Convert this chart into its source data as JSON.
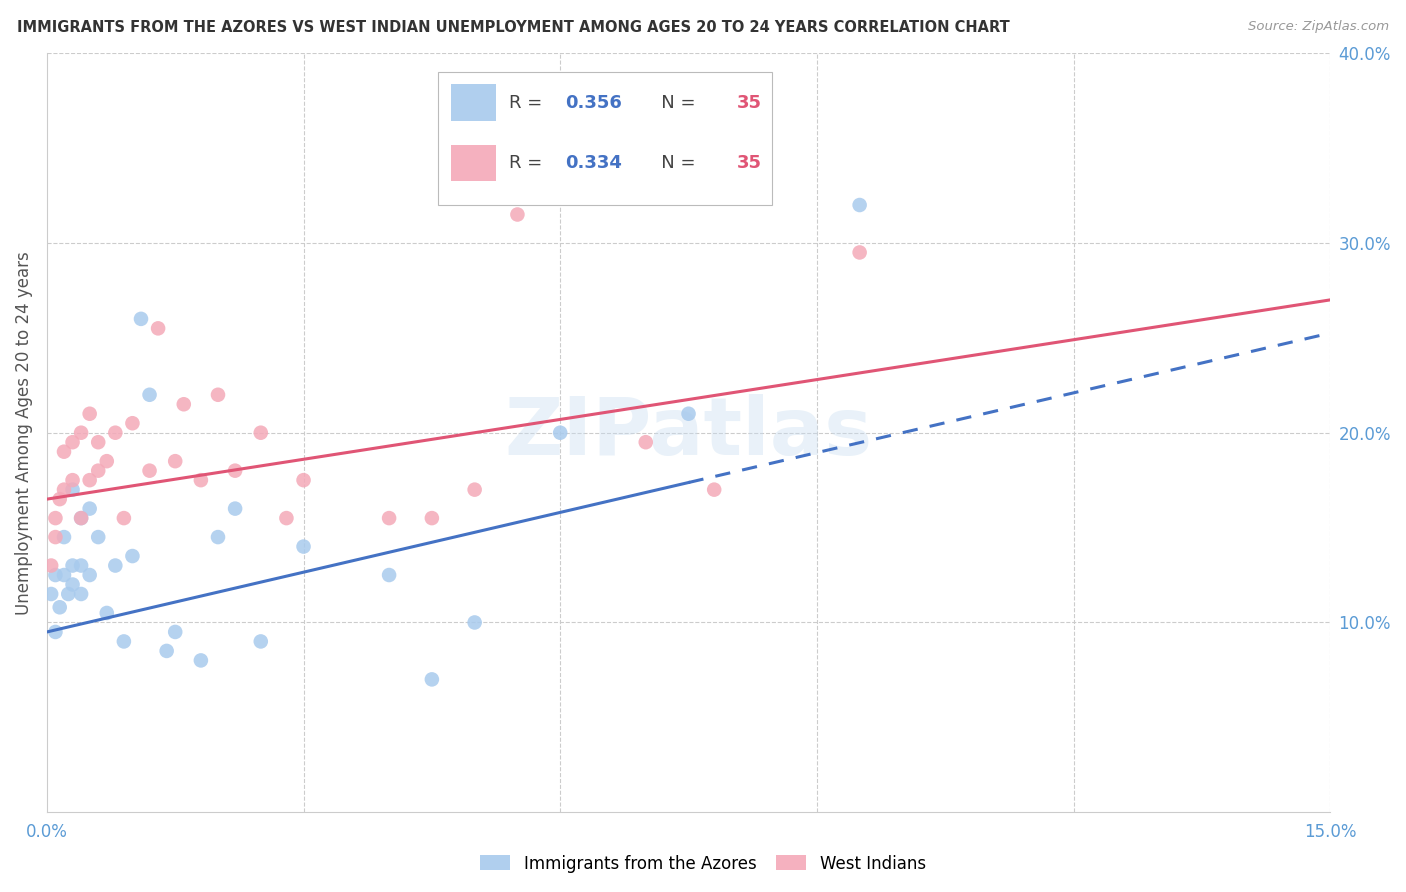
{
  "title": "IMMIGRANTS FROM THE AZORES VS WEST INDIAN UNEMPLOYMENT AMONG AGES 20 TO 24 YEARS CORRELATION CHART",
  "source": "Source: ZipAtlas.com",
  "ylabel": "Unemployment Among Ages 20 to 24 years",
  "xlim": [
    0,
    0.15
  ],
  "ylim": [
    0,
    0.4
  ],
  "x_ticks": [
    0.0,
    0.03,
    0.06,
    0.09,
    0.12,
    0.15
  ],
  "x_tick_labels": [
    "0.0%",
    "",
    "",
    "",
    "",
    "15.0%"
  ],
  "y_ticks_right": [
    0.0,
    0.1,
    0.2,
    0.3,
    0.4
  ],
  "y_tick_labels_right": [
    "",
    "10.0%",
    "20.0%",
    "30.0%",
    "40.0%"
  ],
  "R_azores": 0.356,
  "N_azores": 35,
  "R_west_indian": 0.334,
  "N_west_indian": 35,
  "color_azores": "#a8caed",
  "color_west_indian": "#f4a9b8",
  "color_line_azores": "#4472c4",
  "color_line_west_indian": "#e05575",
  "watermark": "ZIPatlas",
  "azores_x": [
    0.0005,
    0.001,
    0.001,
    0.0015,
    0.002,
    0.002,
    0.0025,
    0.003,
    0.003,
    0.003,
    0.004,
    0.004,
    0.004,
    0.005,
    0.005,
    0.006,
    0.007,
    0.008,
    0.009,
    0.01,
    0.011,
    0.012,
    0.014,
    0.015,
    0.018,
    0.02,
    0.022,
    0.025,
    0.03,
    0.04,
    0.045,
    0.05,
    0.06,
    0.075,
    0.095
  ],
  "azores_y": [
    0.115,
    0.095,
    0.125,
    0.108,
    0.125,
    0.145,
    0.115,
    0.12,
    0.13,
    0.17,
    0.115,
    0.13,
    0.155,
    0.125,
    0.16,
    0.145,
    0.105,
    0.13,
    0.09,
    0.135,
    0.26,
    0.22,
    0.085,
    0.095,
    0.08,
    0.145,
    0.16,
    0.09,
    0.14,
    0.125,
    0.07,
    0.1,
    0.2,
    0.21,
    0.32
  ],
  "west_indian_x": [
    0.0005,
    0.001,
    0.001,
    0.0015,
    0.002,
    0.002,
    0.003,
    0.003,
    0.004,
    0.004,
    0.005,
    0.005,
    0.006,
    0.006,
    0.007,
    0.008,
    0.009,
    0.01,
    0.012,
    0.013,
    0.015,
    0.016,
    0.018,
    0.02,
    0.022,
    0.025,
    0.028,
    0.03,
    0.04,
    0.045,
    0.05,
    0.055,
    0.07,
    0.078,
    0.095
  ],
  "west_indian_y": [
    0.13,
    0.145,
    0.155,
    0.165,
    0.17,
    0.19,
    0.175,
    0.195,
    0.155,
    0.2,
    0.175,
    0.21,
    0.18,
    0.195,
    0.185,
    0.2,
    0.155,
    0.205,
    0.18,
    0.255,
    0.185,
    0.215,
    0.175,
    0.22,
    0.18,
    0.2,
    0.155,
    0.175,
    0.155,
    0.155,
    0.17,
    0.315,
    0.195,
    0.17,
    0.295
  ],
  "line_intercept_az": 0.095,
  "line_slope_az": 1.05,
  "line_intercept_wi": 0.165,
  "line_slope_wi": 0.7
}
